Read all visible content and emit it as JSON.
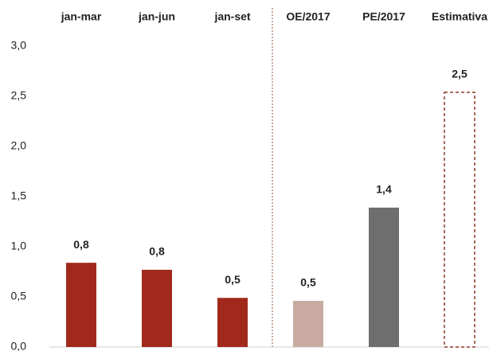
{
  "chart_data": {
    "type": "bar",
    "categories": [
      "jan-mar",
      "jan-jun",
      "jan-set",
      "OE/2017",
      "PE/2017",
      "Estimativa"
    ],
    "values": [
      0.84,
      0.77,
      0.49,
      0.46,
      1.39,
      2.54
    ],
    "value_labels": [
      "0,8",
      "0,8",
      "0,5",
      "0,5",
      "1,4",
      "2,5"
    ],
    "colors": [
      "#a0291c",
      "#a0291c",
      "#a0291c",
      "#c9aaa3",
      "#6e6e6e",
      "#8b3a2a"
    ],
    "bar_styles": [
      "solid",
      "solid",
      "solid",
      "solid",
      "solid",
      "dashed"
    ],
    "ylim": [
      0,
      3
    ],
    "yticks": [
      {
        "value": 0,
        "label": "0,0"
      },
      {
        "value": 0.5,
        "label": "0,5"
      },
      {
        "value": 1,
        "label": "1,0"
      },
      {
        "value": 1.5,
        "label": "1,5"
      },
      {
        "value": 2,
        "label": "2,0"
      },
      {
        "value": 2.5,
        "label": "2,5"
      },
      {
        "value": 3,
        "label": "3,0"
      }
    ],
    "grid": false
  }
}
